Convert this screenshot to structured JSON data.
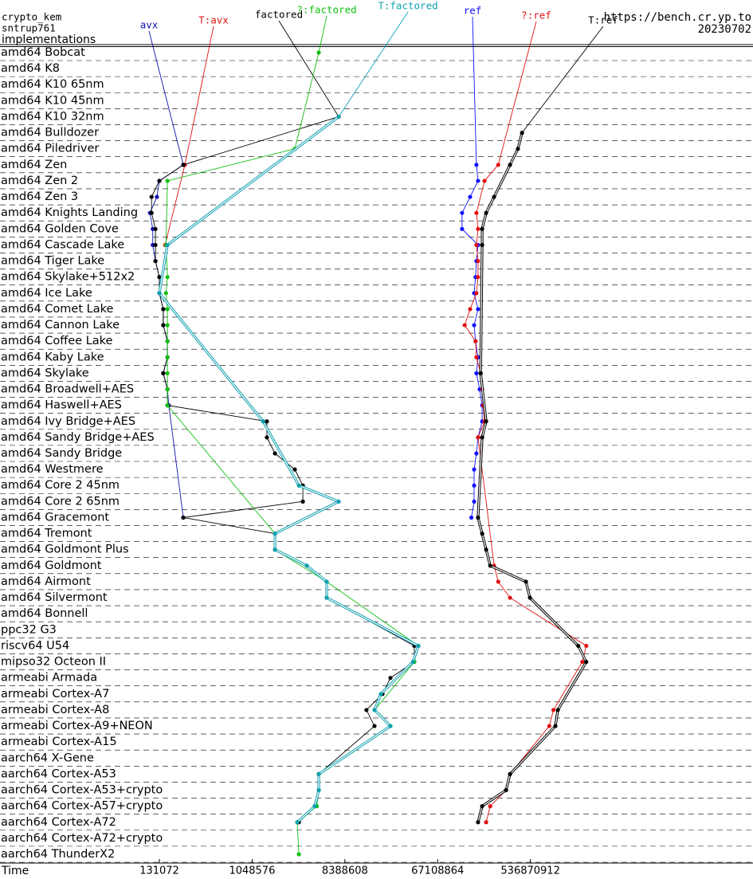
{
  "chart_data": {
    "type": "line",
    "title": "crypto_kem",
    "subtitle": "sntrup761",
    "ylabel": "implementations",
    "source": "https://bench.cr.yp.to",
    "date": "20230702",
    "xlabel": "Time",
    "xscale": "log",
    "xlim": [
      3680,
      78900000000
    ],
    "xticks": [
      131072,
      1048576,
      8388608,
      67108864,
      536870912
    ],
    "categories": [
      "amd64 Bobcat",
      "amd64 K8",
      "amd64 K10 65nm",
      "amd64 K10 45nm",
      "amd64 K10 32nm",
      "amd64 Bulldozer",
      "amd64 Piledriver",
      "amd64 Zen",
      "amd64 Zen 2",
      "amd64 Zen 3",
      "amd64 Knights Landing",
      "amd64 Golden Cove",
      "amd64 Cascade Lake",
      "amd64 Tiger Lake",
      "amd64 Skylake+512x2",
      "amd64 Ice Lake",
      "amd64 Comet Lake",
      "amd64 Cannon Lake",
      "amd64 Coffee Lake",
      "amd64 Kaby Lake",
      "amd64 Skylake",
      "amd64 Broadwell+AES",
      "amd64 Haswell+AES",
      "amd64 Ivy Bridge+AES",
      "amd64 Sandy Bridge+AES",
      "amd64 Sandy Bridge",
      "amd64 Westmere",
      "amd64 Core 2 45nm",
      "amd64 Core 2 65nm",
      "amd64 Gracemont",
      "amd64 Tremont",
      "amd64 Goldmont Plus",
      "amd64 Goldmont",
      "amd64 Airmont",
      "amd64 Silvermont",
      "amd64 Bonnell",
      "ppc32 G3",
      "riscv64 U54",
      "mipso32 Octeon II",
      "armeabi Armada",
      "armeabi Cortex-A7",
      "armeabi Cortex-A8",
      "armeabi Cortex-A9+NEON",
      "armeabi Cortex-A15",
      "aarch64 X-Gene",
      "aarch64 Cortex-A53",
      "aarch64 Cortex-A53+crypto",
      "aarch64 Cortex-A57+crypto",
      "aarch64 Cortex-A72",
      "aarch64 Cortex-A72+crypto",
      "aarch64 ThunderX2"
    ],
    "series": [
      {
        "name": "avx",
        "color": "#1010b0",
        "values": [
          null,
          null,
          null,
          null,
          null,
          null,
          null,
          224000,
          131000,
          124000,
          106000,
          113000,
          113000,
          120000,
          131000,
          131000,
          143000,
          143000,
          157000,
          157000,
          143000,
          157000,
          162000,
          null,
          null,
          null,
          null,
          null,
          null,
          224000,
          null,
          null,
          null,
          null,
          null,
          null,
          null,
          null,
          null,
          null,
          null,
          null,
          null,
          null,
          null,
          null,
          null,
          null,
          null,
          null,
          null
        ]
      },
      {
        "name": "T:avx",
        "color": "#e01010",
        "values": [
          null,
          null,
          null,
          null,
          null,
          null,
          null,
          232000,
          null,
          null,
          null,
          null,
          149000,
          null,
          null,
          null,
          null,
          null,
          null,
          null,
          null,
          null,
          null,
          null,
          null,
          null,
          null,
          null,
          null,
          null,
          null,
          null,
          null,
          null,
          null,
          null,
          null,
          null,
          null,
          null,
          null,
          null,
          null,
          null,
          null,
          null,
          null,
          null,
          null,
          null,
          null
        ]
      },
      {
        "name": "factored",
        "color": "#000000",
        "values": [
          null,
          null,
          null,
          null,
          7300000,
          null,
          null,
          224000,
          131000,
          110000,
          110000,
          120000,
          120000,
          120000,
          131000,
          131000,
          143000,
          143000,
          157000,
          157000,
          143000,
          157000,
          157000,
          1460000,
          1460000,
          1750000,
          2730000,
          3270000,
          3270000,
          224000,
          1750000,
          1750000,
          3570000,
          5580000,
          5580000,
          null,
          null,
          39800000,
          39800000,
          23300000,
          19500000,
          13600000,
          16300000,
          null,
          null,
          4670000,
          4670000,
          4270000,
          2990000,
          null,
          null
        ]
      },
      {
        "name": "?:factored",
        "color": "#10c010",
        "values": [
          4670000,
          null,
          null,
          null,
          null,
          null,
          2730000,
          null,
          157000,
          null,
          null,
          null,
          152000,
          null,
          157000,
          152000,
          157000,
          157000,
          157000,
          157000,
          157000,
          157000,
          157000,
          null,
          null,
          null,
          null,
          null,
          null,
          null,
          1750000,
          1750000,
          null,
          5580000,
          null,
          null,
          null,
          43600000,
          39800000,
          null,
          null,
          16300000,
          23300000,
          null,
          null,
          4670000,
          4670000,
          4470000,
          2880000,
          null,
          2990000
        ]
      },
      {
        "name": "T:factored",
        "color": "#10a0b0",
        "values": [
          null,
          null,
          null,
          null,
          7300000,
          null,
          null,
          null,
          null,
          null,
          null,
          null,
          157000,
          null,
          null,
          131000,
          null,
          null,
          null,
          null,
          null,
          null,
          null,
          1340000,
          null,
          null,
          null,
          2990000,
          7300000,
          null,
          1750000,
          1750000,
          3570000,
          5580000,
          5580000,
          null,
          null,
          43600000,
          38500000,
          null,
          18800000,
          16300000,
          23300000,
          null,
          null,
          4670000,
          4670000,
          4270000,
          2880000,
          null,
          null
        ]
      },
      {
        "name": "ref",
        "color": "#1010ff",
        "values": [
          null,
          null,
          null,
          null,
          null,
          null,
          null,
          160000000,
          166000000,
          139000000,
          116000000,
          116000000,
          166000000,
          160000000,
          157000000,
          152000000,
          166000000,
          152000000,
          157000000,
          166000000,
          160000000,
          172000000,
          182000000,
          182000000,
          166000000,
          160000000,
          152000000,
          152000000,
          152000000,
          143000000,
          null,
          null,
          null,
          null,
          null,
          null,
          null,
          null,
          null,
          null,
          null,
          null,
          null,
          null,
          null,
          null,
          null,
          null,
          null,
          null,
          null
        ]
      },
      {
        "name": "?:ref",
        "color": "#e01010",
        "values": [
          null,
          null,
          null,
          null,
          null,
          null,
          null,
          261000000,
          192000000,
          null,
          160000000,
          166000000,
          160000000,
          166000000,
          166000000,
          160000000,
          139000000,
          123000000,
          157000000,
          160000000,
          176000000,
          182000000,
          186000000,
          192000000,
          166000000,
          null,
          null,
          null,
          null,
          null,
          null,
          null,
          238000000,
          261000000,
          340000000,
          null,
          null,
          1880000000,
          1720000000,
          null,
          null,
          900000000,
          820000000,
          null,
          null,
          340000000,
          311000000,
          218000000,
          199000000,
          null,
          null
        ]
      },
      {
        "name": "T:ref",
        "color": "#000000",
        "values": [
          null,
          null,
          null,
          null,
          null,
          445000000,
          406000000,
          340000000,
          null,
          238000000,
          199000000,
          182000000,
          182000000,
          null,
          null,
          null,
          null,
          null,
          null,
          null,
          176000000,
          null,
          null,
          199000000,
          182000000,
          null,
          null,
          null,
          null,
          166000000,
          182000000,
          199000000,
          218000000,
          486000000,
          531000000,
          null,
          null,
          1570000000,
          1880000000,
          null,
          null,
          993000000,
          940000000,
          null,
          null,
          340000000,
          311000000,
          182000000,
          166000000,
          null,
          null
        ]
      }
    ]
  }
}
